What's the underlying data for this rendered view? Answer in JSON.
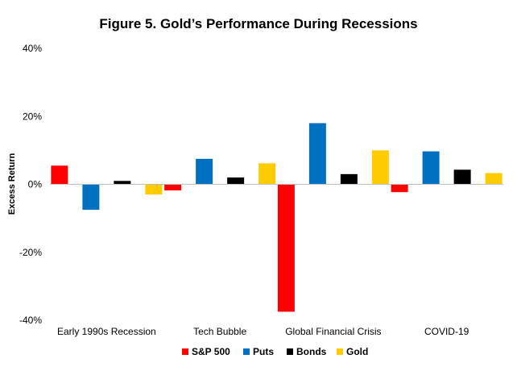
{
  "chart_data": {
    "type": "bar",
    "title": "Figure 5. Gold’s Performance During Recessions",
    "xlabel": "",
    "ylabel": "Excess Return",
    "ylim": [
      -40,
      40
    ],
    "yticks": [
      40,
      20,
      0,
      -20,
      -40
    ],
    "ytick_labels": [
      "40%",
      "20%",
      "0%",
      "-20%",
      "-40%"
    ],
    "categories": [
      "Early 1990s Recession",
      "Tech Bubble",
      "Global Financial Crisis",
      "COVID-19"
    ],
    "series": [
      {
        "name": "S&P 500",
        "color": "#ff0000",
        "values": [
          5.5,
          -1.8,
          -37.5,
          -2.3
        ]
      },
      {
        "name": "Puts",
        "color": "#0070c0",
        "values": [
          -7.5,
          7.5,
          18.0,
          9.7
        ]
      },
      {
        "name": "Bonds",
        "color": "#000000",
        "values": [
          1.0,
          2.0,
          3.0,
          4.3
        ]
      },
      {
        "name": "Gold",
        "color": "#ffcc00",
        "values": [
          -3.0,
          6.2,
          10.0,
          3.3
        ]
      }
    ],
    "grid": false,
    "legend_position": "bottom"
  }
}
